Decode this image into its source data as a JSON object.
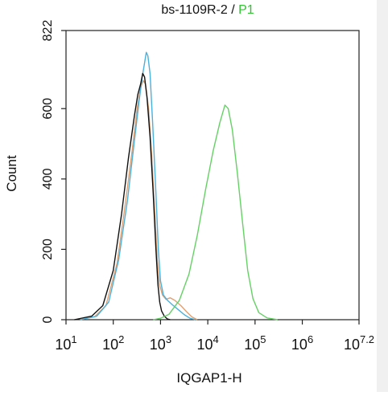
{
  "chart_data": {
    "type": "line",
    "title": {
      "sample": "bs-1109R-2",
      "separator": " / ",
      "gate": "P1",
      "gate_color": "#33c233"
    },
    "xlabel": "IQGAP1-H",
    "ylabel": "Count",
    "x_scale": "log10",
    "xlim": [
      10,
      15848931.92
    ],
    "ylim": [
      0,
      822
    ],
    "x_ticks": [
      {
        "value": 10,
        "base": "10",
        "exp": "1"
      },
      {
        "value": 100,
        "base": "10",
        "exp": "2"
      },
      {
        "value": 1000,
        "base": "10",
        "exp": "3"
      },
      {
        "value": 10000,
        "base": "10",
        "exp": "4"
      },
      {
        "value": 100000,
        "base": "10",
        "exp": "5"
      },
      {
        "value": 1000000,
        "base": "10",
        "exp": "6"
      },
      {
        "value": 15848931.92,
        "base": "10",
        "exp": "7.2"
      }
    ],
    "y_ticks": [
      {
        "value": 0,
        "label": "0"
      },
      {
        "value": 200,
        "label": "200"
      },
      {
        "value": 400,
        "label": "400"
      },
      {
        "value": 600,
        "label": "600"
      },
      {
        "value": 822,
        "label": "822"
      }
    ],
    "grid": false,
    "legend": "none",
    "series": [
      {
        "color": "#e0a070",
        "points": [
          [
            20,
            0
          ],
          [
            40,
            8
          ],
          [
            70,
            40
          ],
          [
            120,
            160
          ],
          [
            180,
            330
          ],
          [
            250,
            480
          ],
          [
            320,
            600
          ],
          [
            380,
            660
          ],
          [
            430,
            680
          ],
          [
            480,
            670
          ],
          [
            560,
            600
          ],
          [
            650,
            470
          ],
          [
            760,
            300
          ],
          [
            850,
            170
          ],
          [
            950,
            100
          ],
          [
            1100,
            70
          ],
          [
            1300,
            58
          ],
          [
            1600,
            62
          ],
          [
            2000,
            55
          ],
          [
            2700,
            40
          ],
          [
            3600,
            22
          ],
          [
            4600,
            8
          ],
          [
            6000,
            0
          ]
        ]
      },
      {
        "color": "#4ab0dc",
        "points": [
          [
            20,
            0
          ],
          [
            45,
            10
          ],
          [
            80,
            50
          ],
          [
            130,
            170
          ],
          [
            200,
            340
          ],
          [
            270,
            490
          ],
          [
            350,
            620
          ],
          [
            410,
            690
          ],
          [
            460,
            730
          ],
          [
            500,
            760
          ],
          [
            540,
            750
          ],
          [
            600,
            700
          ],
          [
            680,
            560
          ],
          [
            800,
            360
          ],
          [
            900,
            200
          ],
          [
            1000,
            110
          ],
          [
            1150,
            70
          ],
          [
            1400,
            55
          ],
          [
            1800,
            42
          ],
          [
            2400,
            28
          ],
          [
            3200,
            14
          ],
          [
            4200,
            4
          ],
          [
            5500,
            0
          ]
        ]
      },
      {
        "color": "#111111",
        "points": [
          [
            15,
            0
          ],
          [
            35,
            10
          ],
          [
            60,
            40
          ],
          [
            100,
            140
          ],
          [
            150,
            300
          ],
          [
            210,
            460
          ],
          [
            280,
            580
          ],
          [
            330,
            640
          ],
          [
            380,
            670
          ],
          [
            420,
            700
          ],
          [
            460,
            690
          ],
          [
            520,
            630
          ],
          [
            600,
            520
          ],
          [
            700,
            360
          ],
          [
            800,
            200
          ],
          [
            880,
            100
          ],
          [
            960,
            50
          ],
          [
            1050,
            25
          ],
          [
            1200,
            10
          ],
          [
            1400,
            2
          ],
          [
            1600,
            0
          ]
        ]
      },
      {
        "color": "#66d066",
        "points": [
          [
            700,
            0
          ],
          [
            1000,
            4
          ],
          [
            1500,
            15
          ],
          [
            2500,
            55
          ],
          [
            4000,
            130
          ],
          [
            6000,
            240
          ],
          [
            9000,
            370
          ],
          [
            13000,
            480
          ],
          [
            18000,
            560
          ],
          [
            23000,
            610
          ],
          [
            27000,
            600
          ],
          [
            33000,
            540
          ],
          [
            42000,
            420
          ],
          [
            55000,
            270
          ],
          [
            70000,
            140
          ],
          [
            90000,
            60
          ],
          [
            120000,
            20
          ],
          [
            180000,
            5
          ],
          [
            300000,
            0
          ]
        ]
      }
    ]
  }
}
